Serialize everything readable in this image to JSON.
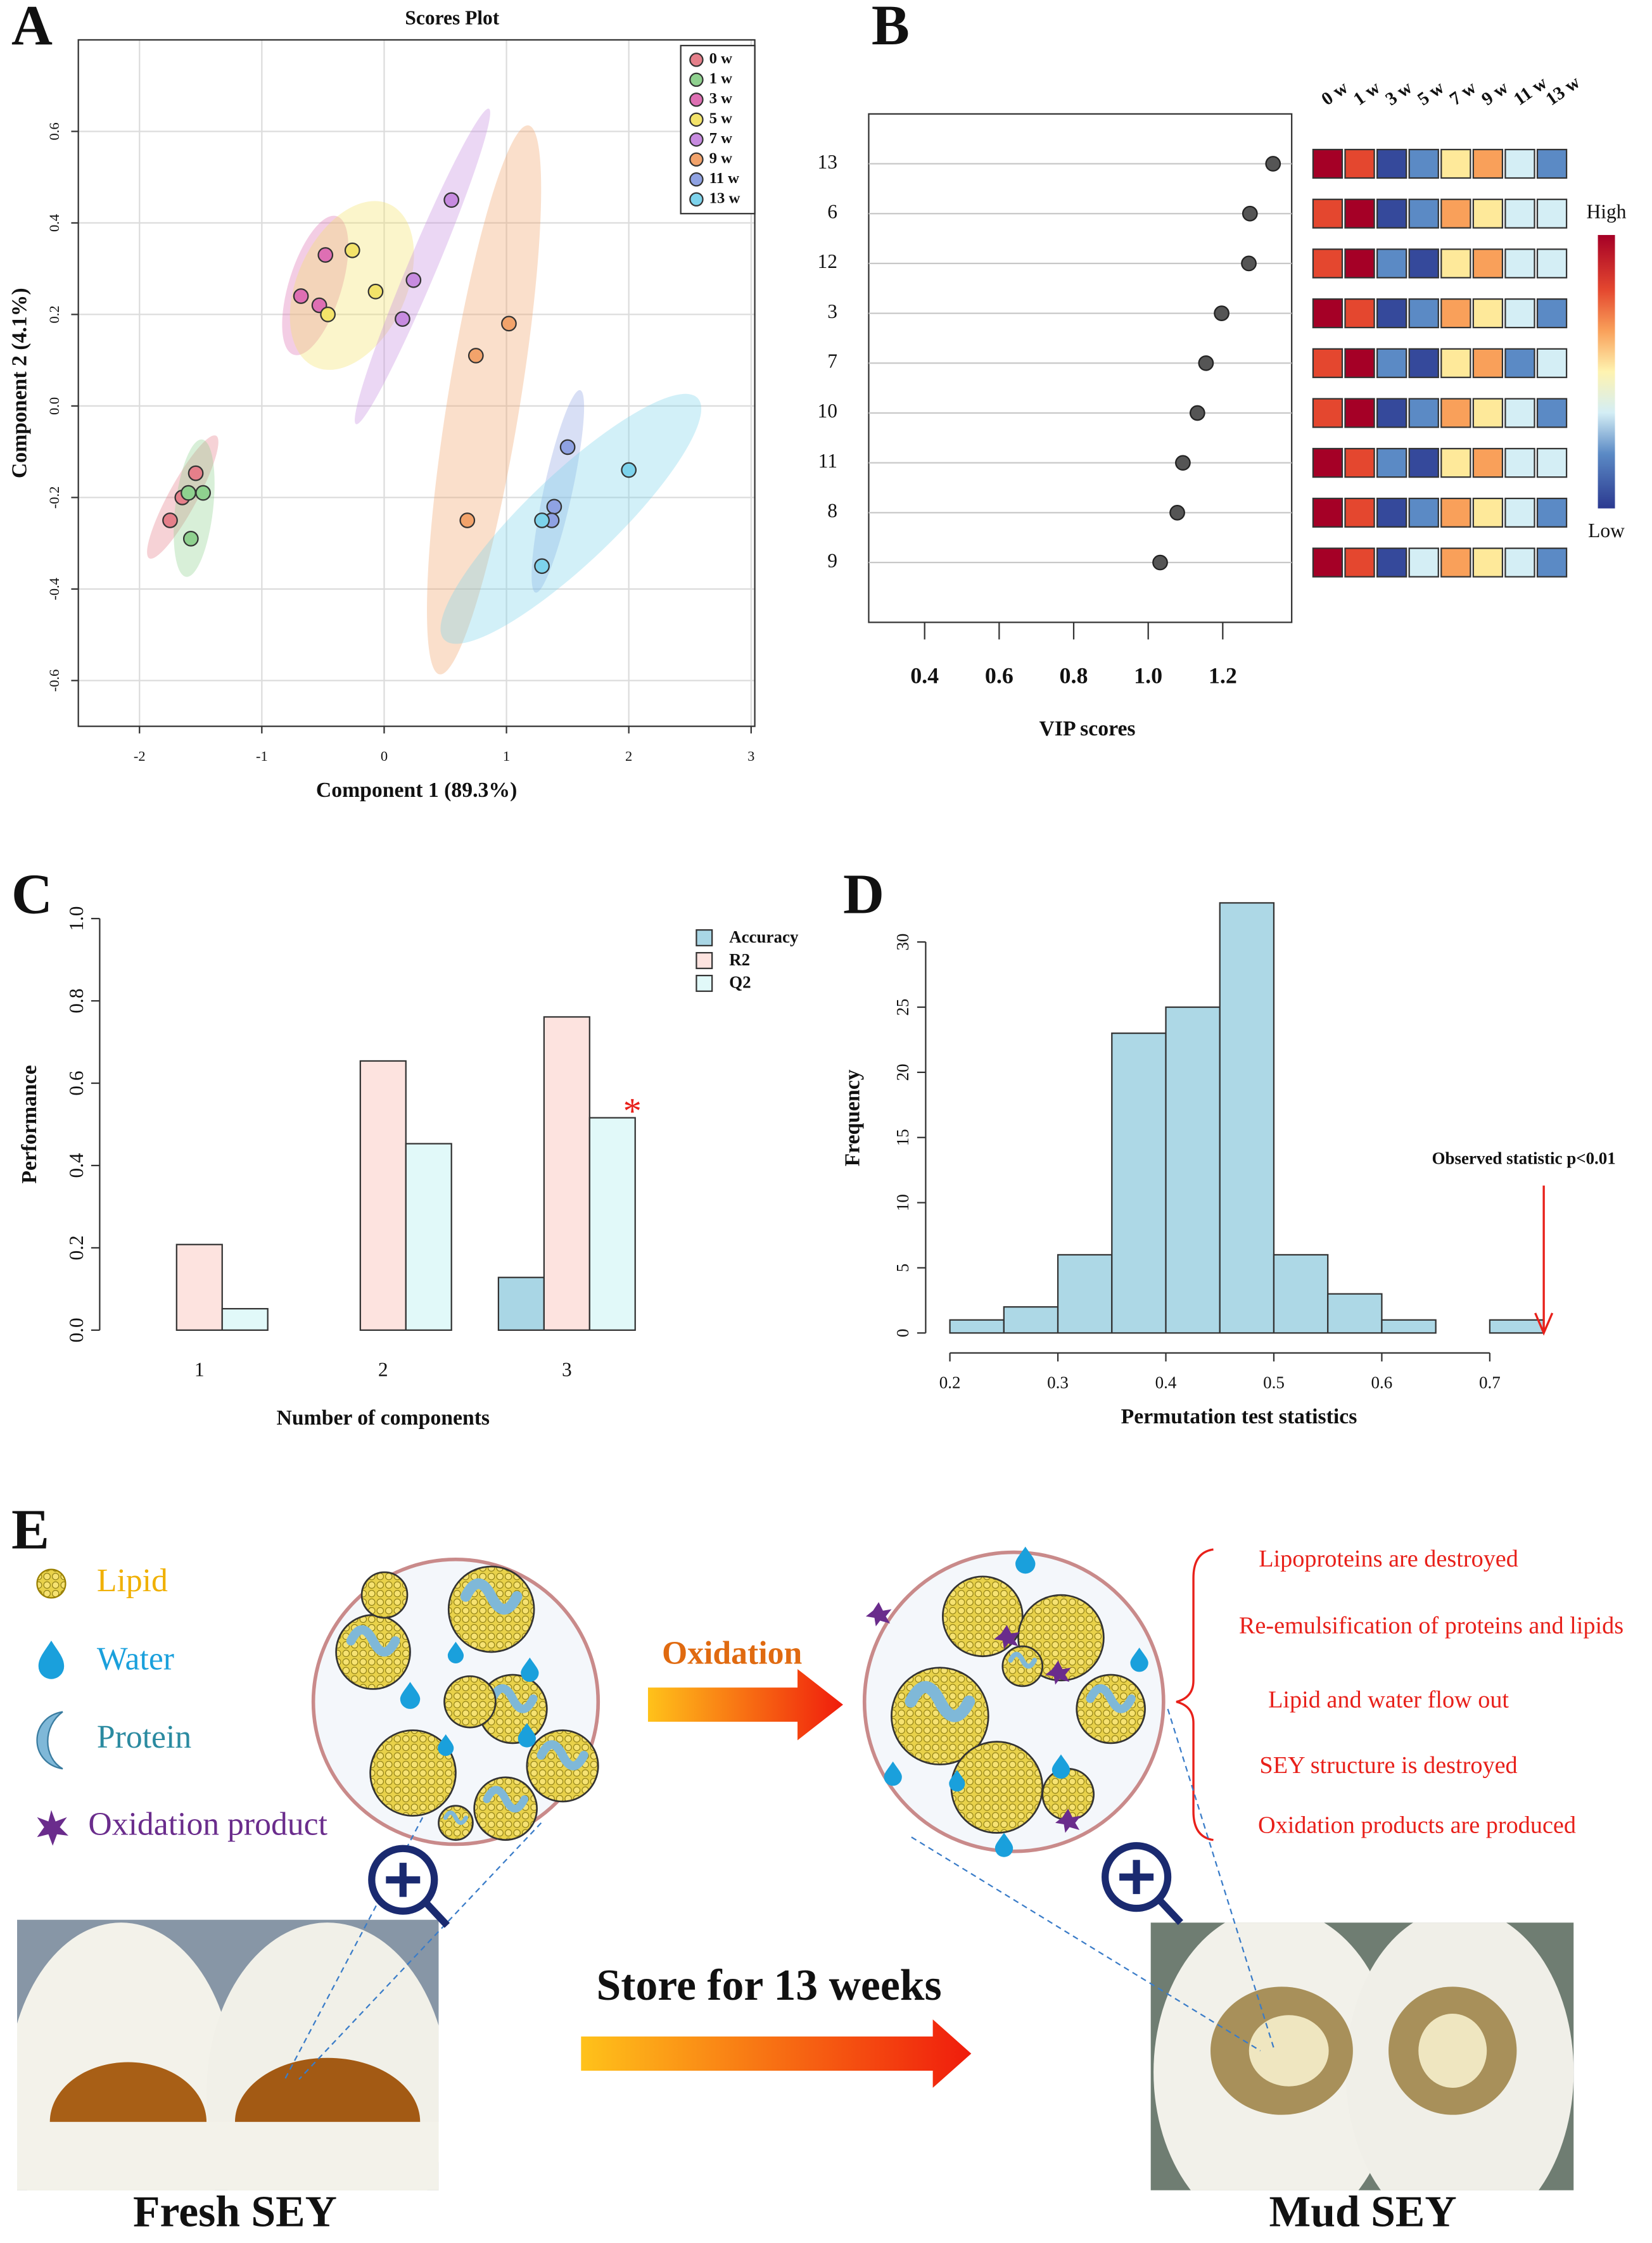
{
  "chart_data": [
    {
      "panel": "A",
      "type": "scatter",
      "title": "Scores Plot",
      "x_label": "Component 1 (89.3%)",
      "y_label": "Component 2 (4.1%)",
      "xlim": [
        -2.5,
        3.03
      ],
      "ylim": [
        -0.7,
        0.8
      ],
      "xticks": [
        -2,
        -1,
        0,
        1,
        2,
        3
      ],
      "yticks": [
        -0.6,
        -0.4,
        -0.2,
        {
          "value": 0,
          "label": "0.0"
        },
        0.2,
        0.4,
        0.6
      ],
      "grid": true,
      "legend": "top-right",
      "series": [
        {
          "name": "0 w",
          "color": "#e57f8a",
          "x": [
            -1.75,
            -1.65,
            -1.54
          ],
          "values": [
            -0.25,
            -0.2,
            -0.147
          ]
        },
        {
          "name": "1 w",
          "color": "#8fd18f",
          "x": [
            -1.6,
            -1.48,
            -1.58
          ],
          "values": [
            -0.19,
            -0.19,
            -0.29
          ]
        },
        {
          "name": "3 w",
          "color": "#de6fb3",
          "x": [
            -0.68,
            -0.48,
            -0.53
          ],
          "values": [
            0.24,
            0.33,
            0.22
          ]
        },
        {
          "name": "5 w",
          "color": "#f3e36a",
          "x": [
            -0.26,
            -0.46,
            -0.07
          ],
          "values": [
            0.34,
            0.2,
            0.25
          ]
        },
        {
          "name": "7 w",
          "color": "#c78be0",
          "x": [
            0.55,
            0.24,
            0.15
          ],
          "values": [
            0.45,
            0.275,
            0.19
          ]
        },
        {
          "name": "9 w",
          "color": "#f2a36b",
          "x": [
            1.02,
            0.75,
            0.68
          ],
          "values": [
            0.18,
            0.11,
            -0.25
          ]
        },
        {
          "name": "11 w",
          "color": "#8fa2e3",
          "x": [
            1.5,
            1.39,
            1.37
          ],
          "values": [
            -0.09,
            -0.22,
            -0.25
          ]
        },
        {
          "name": "13 w",
          "color": "#7dd3ec",
          "x": [
            2.0,
            1.29,
            1.29
          ],
          "values": [
            -0.14,
            -0.25,
            -0.35
          ]
        }
      ]
    },
    {
      "panel": "B",
      "type": "dot",
      "x_label": "VIP scores",
      "color": "#555555",
      "grid": true,
      "categories": [
        "13",
        "6",
        "12",
        "3",
        "7",
        "10",
        "11",
        "8",
        "9"
      ],
      "values": [
        1.335,
        1.273,
        1.27,
        1.197,
        1.155,
        1.132,
        1.093,
        1.078,
        1.032
      ],
      "xlim": [
        0.25,
        1.385
      ],
      "xticks": [
        0.4,
        0.6,
        0.8,
        {
          "value": 1,
          "label": "1.0"
        },
        1.2
      ],
      "heatmap": {
        "columns": [
          "0 w",
          "1 w",
          "3 w",
          "5 w",
          "7 w",
          "9 w",
          "11 w",
          "13 w"
        ],
        "colorbar_labels": [
          "High",
          "Low"
        ],
        "values": [
          [
            1,
            0.7,
            -0.9,
            -0.5,
            0.15,
            0.4,
            -0.2,
            -0.5
          ],
          [
            0.7,
            1,
            -0.9,
            -0.5,
            0.4,
            0.15,
            -0.2,
            -0.2
          ],
          [
            0.7,
            1,
            -0.5,
            -0.9,
            0.15,
            0.4,
            -0.2,
            -0.2
          ],
          [
            1,
            0.7,
            -0.9,
            -0.5,
            0.4,
            0.15,
            -0.2,
            -0.5
          ],
          [
            0.7,
            1,
            -0.5,
            -0.9,
            0.15,
            0.4,
            -0.5,
            -0.2
          ],
          [
            0.7,
            1,
            -0.9,
            -0.5,
            0.4,
            0.15,
            -0.2,
            -0.5
          ],
          [
            1,
            0.7,
            -0.5,
            -0.9,
            0.15,
            0.4,
            -0.2,
            -0.2
          ],
          [
            1,
            0.7,
            -0.9,
            -0.5,
            0.4,
            0.15,
            -0.2,
            -0.5
          ],
          [
            1,
            0.7,
            -0.9,
            -0.2,
            0.4,
            0.15,
            -0.2,
            -0.5
          ]
        ]
      }
    },
    {
      "panel": "C",
      "type": "bar",
      "x_label": "Number of components",
      "y_label": "Performance",
      "categories": [
        "1",
        "2",
        "3"
      ],
      "legend": "top-right",
      "annotation": "*",
      "ylim": [
        0,
        1
      ],
      "yticks": [
        {
          "value": 0,
          "label": "0.0"
        },
        0.2,
        0.4,
        0.6,
        0.8,
        {
          "value": 1,
          "label": "1.0"
        }
      ],
      "series": [
        {
          "name": "Accuracy",
          "color": "#a9d6e5",
          "values": [
            0,
            0,
            0.128
          ]
        },
        {
          "name": "R2",
          "color": "#fde3df",
          "values": [
            0.208,
            0.654,
            0.761
          ]
        },
        {
          "name": "Q2",
          "color": "#e1f9f9",
          "values": [
            0.052,
            0.453,
            0.516
          ]
        }
      ]
    },
    {
      "panel": "D",
      "type": "histogram",
      "x_label": "Permutation test statistics",
      "y_label": "Frequency",
      "color": "#add8e6",
      "bins": [
        0.2,
        0.25,
        0.3,
        0.35,
        0.4,
        0.45,
        0.5,
        0.55,
        0.6,
        0.65,
        0.7,
        0.75
      ],
      "values": [
        1,
        2,
        6,
        23,
        25,
        33,
        6,
        3,
        1,
        0,
        1
      ],
      "xlim": [
        0.2,
        0.75
      ],
      "ylim": [
        0,
        33
      ],
      "xticks": [
        0.2,
        0.3,
        0.4,
        0.5,
        0.6,
        0.7
      ],
      "yticks": [
        0,
        5,
        10,
        15,
        20,
        25,
        30
      ],
      "annotation": "Observed statistic p<0.01",
      "observed": 0.75
    }
  ],
  "diagram": {
    "panel": "E",
    "legend": [
      "Lipid",
      "Water",
      "Protein",
      "Oxidation product"
    ],
    "process": "Oxidation",
    "effects": [
      "Lipoproteins are destroyed",
      "Re-emulsification of proteins and lipids",
      "Lipid and water flow out",
      "SEY structure is destroyed",
      "Oxidation products are produced"
    ],
    "storage": "Store for 13 weeks",
    "before": "Fresh SEY",
    "after": "Mud SEY"
  }
}
